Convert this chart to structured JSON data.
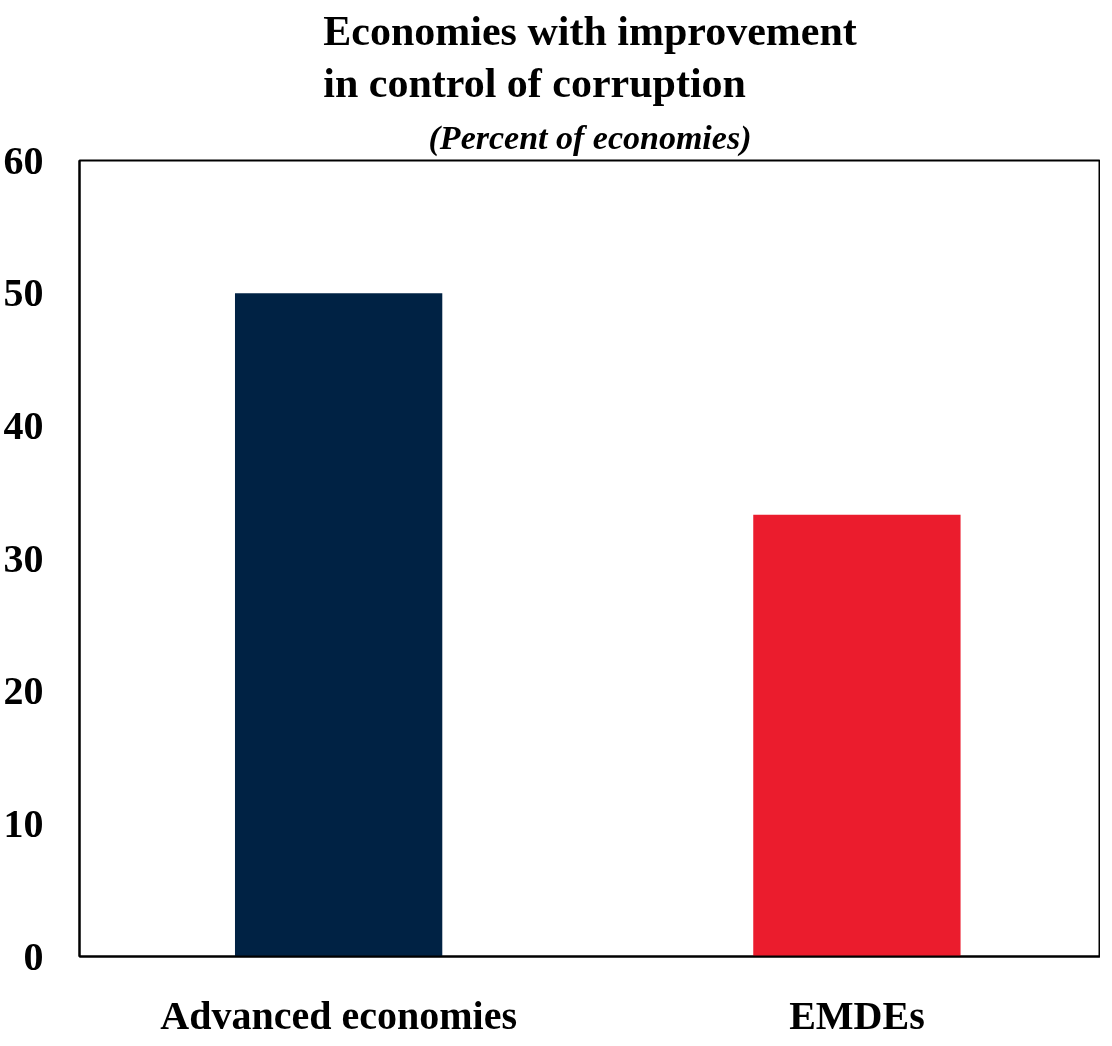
{
  "chart_data": {
    "type": "bar",
    "title": "Economies with improvement in control of corruption",
    "subtitle": "(Percent of economies)",
    "categories": [
      "Advanced economies",
      "EMDEs"
    ],
    "values": [
      50,
      33.3
    ],
    "colors": [
      "#002244",
      "#eb1c2d"
    ],
    "ylim": [
      0,
      60
    ],
    "yticks": [
      0,
      10,
      20,
      30,
      40,
      50,
      60
    ],
    "grid": false
  }
}
